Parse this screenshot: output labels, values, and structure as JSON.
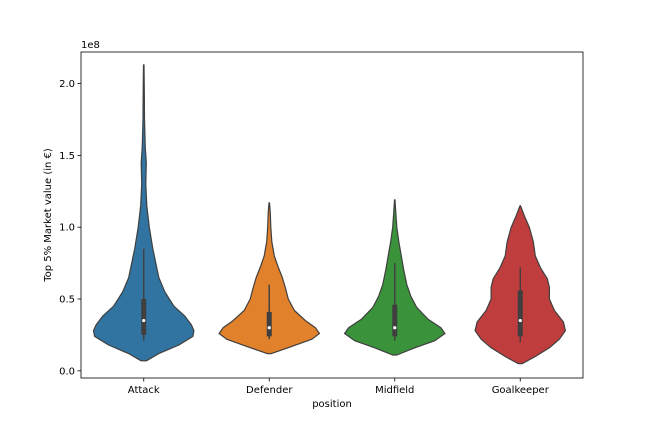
{
  "chart_data": {
    "type": "violin",
    "xlabel": "position",
    "ylabel": "Top 5% Market value (in €)",
    "offset_label": "1e8",
    "categories": [
      "Attack",
      "Defender",
      "Midfield",
      "Goalkeeper"
    ],
    "colors": [
      "#3274a1",
      "#e1812c",
      "#3a923a",
      "#c03d3e"
    ],
    "y_scale_display": 100000000,
    "ylim": [
      -5000000,
      222000000
    ],
    "yticks": [
      0,
      50000000,
      100000000,
      150000000,
      200000000
    ],
    "ytick_labels": [
      "0.0",
      "0.5",
      "1.0",
      "1.5",
      "2.0"
    ],
    "violins": [
      {
        "name": "Attack",
        "min": 7000000,
        "max": 213000000,
        "whisker_low": 21000000,
        "q1": 25000000,
        "median": 35000000,
        "q3": 50000000,
        "whisker_high": 85000000,
        "profile": [
          [
            7000000,
            0.05
          ],
          [
            12000000,
            0.3
          ],
          [
            18000000,
            0.7
          ],
          [
            24000000,
            0.98
          ],
          [
            28000000,
            1.0
          ],
          [
            32000000,
            0.95
          ],
          [
            38000000,
            0.82
          ],
          [
            45000000,
            0.6
          ],
          [
            55000000,
            0.42
          ],
          [
            65000000,
            0.3
          ],
          [
            75000000,
            0.24
          ],
          [
            85000000,
            0.18
          ],
          [
            100000000,
            0.11
          ],
          [
            115000000,
            0.06
          ],
          [
            130000000,
            0.04
          ],
          [
            145000000,
            0.05
          ],
          [
            155000000,
            0.03
          ],
          [
            175000000,
            0.015
          ],
          [
            195000000,
            0.01
          ],
          [
            213000000,
            0.005
          ]
        ]
      },
      {
        "name": "Defender",
        "min": 12000000,
        "max": 117000000,
        "whisker_low": 22000000,
        "q1": 24000000,
        "median": 30000000,
        "q3": 41000000,
        "whisker_high": 60000000,
        "profile": [
          [
            12000000,
            0.04
          ],
          [
            17000000,
            0.45
          ],
          [
            22000000,
            0.85
          ],
          [
            26000000,
            1.0
          ],
          [
            30000000,
            0.92
          ],
          [
            35000000,
            0.72
          ],
          [
            42000000,
            0.5
          ],
          [
            50000000,
            0.38
          ],
          [
            58000000,
            0.32
          ],
          [
            65000000,
            0.26
          ],
          [
            72000000,
            0.18
          ],
          [
            80000000,
            0.1
          ],
          [
            90000000,
            0.05
          ],
          [
            100000000,
            0.03
          ],
          [
            110000000,
            0.02
          ],
          [
            117000000,
            0.005
          ]
        ]
      },
      {
        "name": "Midfield",
        "min": 11000000,
        "max": 119000000,
        "whisker_low": 21000000,
        "q1": 24000000,
        "median": 30000000,
        "q3": 46000000,
        "whisker_high": 75000000,
        "profile": [
          [
            11000000,
            0.04
          ],
          [
            16000000,
            0.4
          ],
          [
            21000000,
            0.8
          ],
          [
            26000000,
            1.0
          ],
          [
            30000000,
            0.92
          ],
          [
            36000000,
            0.66
          ],
          [
            44000000,
            0.44
          ],
          [
            52000000,
            0.32
          ],
          [
            60000000,
            0.24
          ],
          [
            70000000,
            0.18
          ],
          [
            80000000,
            0.13
          ],
          [
            90000000,
            0.08
          ],
          [
            100000000,
            0.04
          ],
          [
            110000000,
            0.02
          ],
          [
            119000000,
            0.005
          ]
        ]
      },
      {
        "name": "Goalkeeper",
        "min": 5000000,
        "max": 115000000,
        "whisker_low": 20000000,
        "q1": 24000000,
        "median": 35000000,
        "q3": 56000000,
        "whisker_high": 72000000,
        "profile": [
          [
            5000000,
            0.04
          ],
          [
            10000000,
            0.3
          ],
          [
            16000000,
            0.58
          ],
          [
            22000000,
            0.78
          ],
          [
            28000000,
            0.9
          ],
          [
            34000000,
            0.86
          ],
          [
            42000000,
            0.68
          ],
          [
            50000000,
            0.58
          ],
          [
            58000000,
            0.58
          ],
          [
            64000000,
            0.54
          ],
          [
            72000000,
            0.4
          ],
          [
            80000000,
            0.3
          ],
          [
            90000000,
            0.26
          ],
          [
            100000000,
            0.18
          ],
          [
            108000000,
            0.08
          ],
          [
            115000000,
            0.005
          ]
        ]
      }
    ]
  }
}
